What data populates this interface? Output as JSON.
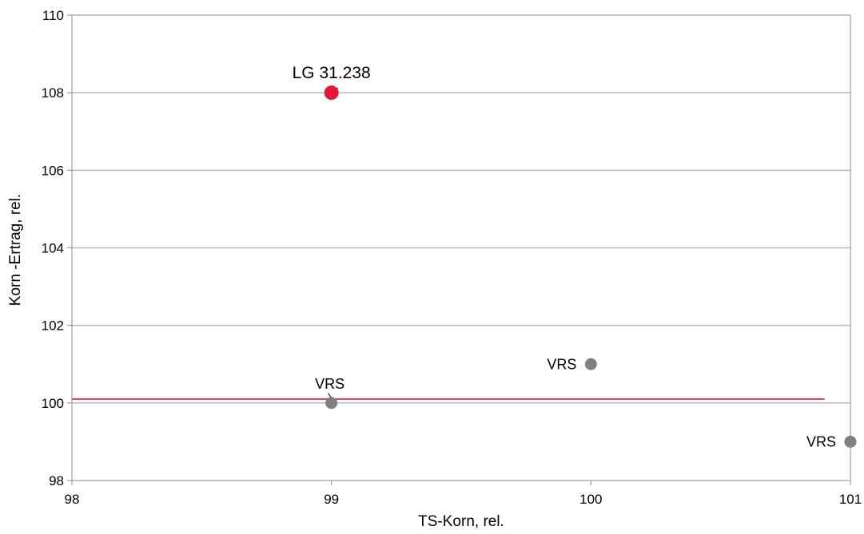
{
  "chart_data": {
    "type": "scatter",
    "xlabel": "TS-Korn, rel.",
    "ylabel": "Korn -Ertrag,  rel.",
    "xlim": [
      98,
      101
    ],
    "ylim": [
      98,
      110
    ],
    "x_ticks": [
      "98",
      "99",
      "100",
      "101"
    ],
    "y_ticks": [
      "98",
      "100",
      "102",
      "104",
      "106",
      "108",
      "110"
    ],
    "grid": "horizontal",
    "points": [
      {
        "label": "LG 31.238",
        "x": 99,
        "y": 108,
        "highlight": true
      },
      {
        "label": "VRS",
        "x": 99,
        "y": 100,
        "highlight": false
      },
      {
        "label": "VRS",
        "x": 100,
        "y": 101,
        "highlight": false
      },
      {
        "label": "VRS",
        "x": 101,
        "y": 99,
        "highlight": false
      }
    ],
    "reference_line": {
      "y": 100.1,
      "x_from": 98,
      "x_to": 100.9
    },
    "colors": {
      "highlight": "#e4163a",
      "point": "#808080",
      "grid": "#b7b7b7",
      "reference": "#e4163a"
    }
  }
}
